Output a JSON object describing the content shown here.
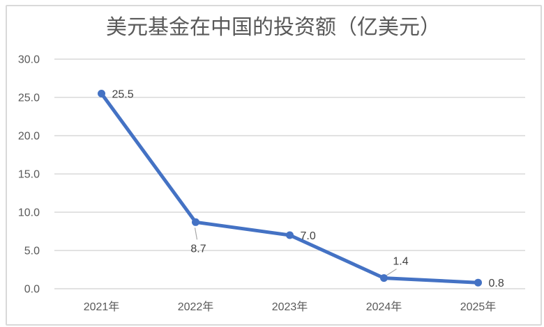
{
  "chart_data": {
    "type": "line",
    "title": "美元基金在中国的投资额（亿美元）",
    "categories": [
      "2021年",
      "2022年",
      "2023年",
      "2024年",
      "2025年"
    ],
    "values": [
      25.5,
      8.7,
      7.0,
      1.4,
      0.8
    ],
    "data_labels": [
      "25.5",
      "8.7",
      "7.0",
      "1.4",
      "0.8"
    ],
    "label_placement": [
      "right",
      "below",
      "right",
      "above",
      "right"
    ],
    "y_tick_labels": [
      "30.0",
      "25.0",
      "20.0",
      "15.0",
      "10.0",
      "5.0",
      "0.0"
    ],
    "ylim": [
      0,
      30
    ],
    "grid": true,
    "legend": "none",
    "xlabel": "",
    "ylabel": "",
    "colors": {
      "line": "#4472C4",
      "marker": "#4472C4",
      "gridline": "#D9D9D9",
      "axis_text": "#595959",
      "title_text": "#595959",
      "data_label_text": "#404040",
      "leader_line": "#A6A6A6",
      "frame_border": "#D9D9D9",
      "background": "#FFFFFF"
    }
  }
}
